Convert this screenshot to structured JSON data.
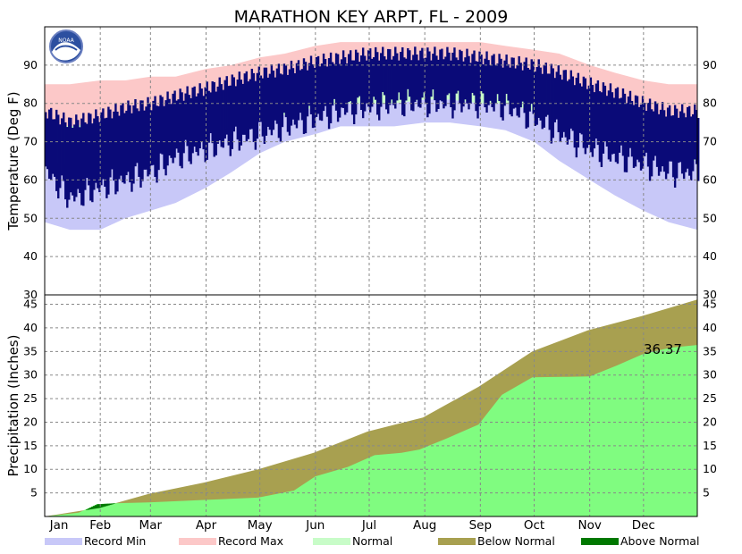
{
  "chart_data": {
    "title": "MARATHON KEY ARPT, FL - 2009",
    "months": [
      "Jan",
      "Feb",
      "Mar",
      "Apr",
      "May",
      "Jun",
      "Jul",
      "Aug",
      "Sep",
      "Oct",
      "Nov",
      "Dec"
    ],
    "temperature": {
      "type": "area",
      "ylabel": "Temperature (Deg F)",
      "ylim": [
        30,
        100
      ],
      "yticks": [
        40,
        50,
        60,
        70,
        80,
        90
      ],
      "grid": true,
      "series_colors": {
        "record_min": "#c8c8f8",
        "record_max": "#fcc8c8",
        "normal": "#c8fcc8",
        "observed": "#0a0a78"
      },
      "days": [
        1,
        15,
        32,
        46,
        60,
        74,
        91,
        105,
        121,
        135,
        152,
        166,
        182,
        196,
        213,
        227,
        244,
        258,
        274,
        288,
        305,
        319,
        335,
        349,
        365
      ],
      "record_min": [
        49,
        47,
        47,
        50,
        52,
        54,
        58,
        62,
        67,
        70,
        72,
        74,
        74,
        74,
        75,
        75,
        74,
        73,
        70,
        65,
        60,
        56,
        52,
        49,
        47
      ],
      "normal_low": [
        65,
        64,
        65,
        66,
        68,
        70,
        72,
        74,
        76,
        77,
        79,
        80,
        80,
        80,
        81,
        81,
        80,
        80,
        78,
        76,
        73,
        71,
        69,
        66,
        65
      ],
      "normal_high": [
        75,
        74,
        75,
        76,
        77,
        78,
        80,
        81,
        84,
        85,
        87,
        88,
        89,
        89,
        90,
        90,
        89,
        88,
        87,
        85,
        82,
        80,
        78,
        76,
        75
      ],
      "record_max": [
        85,
        85,
        86,
        86,
        87,
        87,
        89,
        90,
        92,
        93,
        95,
        96,
        96,
        96,
        96,
        96,
        96,
        95,
        94,
        93,
        90,
        88,
        86,
        85,
        85
      ],
      "observed_low": [
        62,
        55,
        58,
        60,
        62,
        66,
        68,
        70,
        72,
        74,
        76,
        78,
        79,
        80,
        80,
        80,
        80,
        79,
        76,
        72,
        68,
        66,
        64,
        62,
        62
      ],
      "observed_high": [
        78,
        75,
        77,
        79,
        80,
        82,
        84,
        86,
        88,
        89,
        91,
        92,
        93,
        93,
        93,
        93,
        92,
        91,
        90,
        88,
        85,
        83,
        80,
        78,
        78
      ]
    },
    "precipitation": {
      "type": "area",
      "ylabel": "Precipitation (Inches)",
      "ylim": [
        0,
        47
      ],
      "yticks": [
        5,
        10,
        15,
        20,
        25,
        30,
        35,
        40,
        45
      ],
      "grid": true,
      "annotation": "36.37",
      "normal_cumulative": {
        "days": [
          1,
          31,
          59,
          90,
          120,
          151,
          181,
          212,
          243,
          273,
          304,
          334,
          365
        ],
        "values": [
          0,
          1.8,
          4.8,
          7.2,
          10.0,
          13.5,
          18.0,
          21.0,
          27.5,
          35.0,
          39.5,
          42.5,
          46.0
        ]
      },
      "observed_cumulative": {
        "days": [
          1,
          20,
          30,
          40,
          59,
          90,
          120,
          140,
          152,
          170,
          185,
          200,
          210,
          225,
          243,
          256,
          273,
          290,
          305,
          320,
          335,
          350,
          365
        ],
        "values": [
          0,
          0.8,
          2.6,
          2.8,
          3.0,
          3.5,
          4.0,
          5.5,
          8.5,
          10.5,
          13.0,
          13.5,
          14.2,
          16.5,
          19.5,
          25.8,
          29.5,
          29.6,
          29.7,
          32.0,
          34.5,
          35.8,
          36.37
        ]
      }
    },
    "legend": [
      {
        "label": "Record Min",
        "color": "#c8c8f8"
      },
      {
        "label": "Record Max",
        "color": "#fcc8c8"
      },
      {
        "label": "Normal",
        "color": "#c8fcc8"
      },
      {
        "label": "Below Normal",
        "color": "#a8a050"
      },
      {
        "label": "Above Normal",
        "color": "#007800"
      }
    ],
    "precip_colors": {
      "observed": "#80fc80",
      "below": "#a8a050",
      "above": "#007800"
    }
  }
}
